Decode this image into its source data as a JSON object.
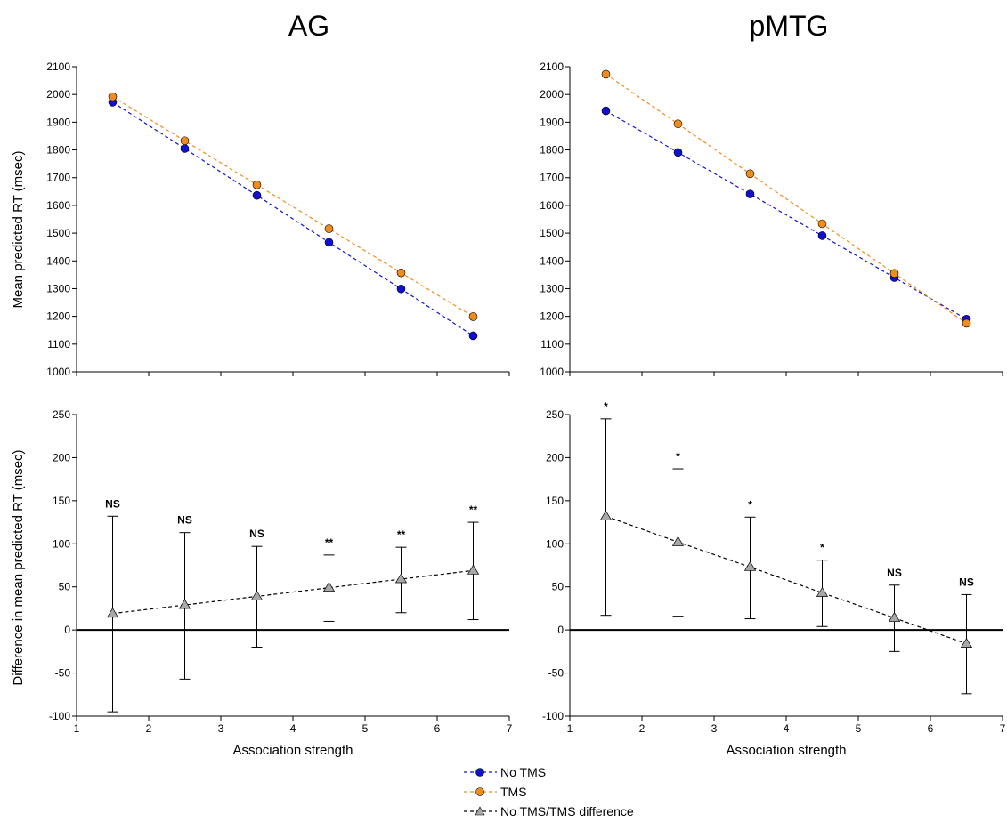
{
  "colors": {
    "no_tms": "#1010d0",
    "tms": "#f08c1c",
    "difference": "#a8a8a8",
    "axis": "#000000"
  },
  "legend": {
    "entries": [
      {
        "key": "no_tms",
        "label": "No TMS",
        "marker": "circle"
      },
      {
        "key": "tms",
        "label": "TMS",
        "marker": "circle"
      },
      {
        "key": "difference",
        "label": "No TMS/TMS difference",
        "marker": "triangle"
      }
    ]
  },
  "shared_axes": {
    "xlabel": "Association strength",
    "top_ylabel": "Mean predicted RT (msec)",
    "bottom_ylabel": "Difference in mean predicted RT (msec)"
  },
  "chart_data": [
    {
      "panel": "AG-top",
      "type": "line",
      "title": "AG",
      "xlabel": "",
      "ylabel": "Mean predicted RT (msec)",
      "xlim": [
        1,
        7
      ],
      "ylim": [
        1000,
        2100
      ],
      "x": [
        1.5,
        2.5,
        3.5,
        4.5,
        5.5,
        6.5
      ],
      "yticks": [
        1000,
        1100,
        1200,
        1300,
        1400,
        1500,
        1600,
        1700,
        1800,
        1900,
        2000,
        2100
      ],
      "series": [
        {
          "name": "No TMS",
          "color_key": "no_tms",
          "values": [
            1972,
            1805,
            1636,
            1467,
            1299,
            1130
          ]
        },
        {
          "name": "TMS",
          "color_key": "tms",
          "values": [
            1992,
            1833,
            1674,
            1516,
            1357,
            1199
          ]
        }
      ]
    },
    {
      "panel": "pMTG-top",
      "type": "line",
      "title": "pMTG",
      "xlabel": "",
      "ylabel": "",
      "xlim": [
        1,
        7
      ],
      "ylim": [
        1000,
        2100
      ],
      "x": [
        1.5,
        2.5,
        3.5,
        4.5,
        5.5,
        6.5
      ],
      "yticks": [
        1000,
        1100,
        1200,
        1300,
        1400,
        1500,
        1600,
        1700,
        1800,
        1900,
        2000,
        2100
      ],
      "series": [
        {
          "name": "No TMS",
          "color_key": "no_tms",
          "values": [
            1941,
            1791,
            1641,
            1491,
            1340,
            1190
          ]
        },
        {
          "name": "TMS",
          "color_key": "tms",
          "values": [
            2073,
            1894,
            1714,
            1534,
            1355,
            1175
          ]
        }
      ]
    },
    {
      "panel": "AG-bottom",
      "type": "line",
      "title": "",
      "xlabel": "Association strength",
      "ylabel": "Difference in mean predicted RT (msec)",
      "xlim": [
        1,
        7
      ],
      "ylim": [
        -100,
        250
      ],
      "x": [
        1.5,
        2.5,
        3.5,
        4.5,
        5.5,
        6.5
      ],
      "xticks": [
        1,
        2,
        3,
        4,
        5,
        6,
        7
      ],
      "yticks": [
        -100,
        -50,
        0,
        50,
        100,
        150,
        200,
        250
      ],
      "series": [
        {
          "name": "No TMS/TMS difference",
          "color_key": "difference",
          "values": [
            19,
            29,
            39,
            49,
            59,
            69
          ],
          "err_low": [
            -95,
            -57,
            -20,
            10,
            20,
            12
          ],
          "err_high": [
            132,
            113,
            97,
            87,
            96,
            125
          ]
        }
      ],
      "annotations": [
        "NS",
        "NS",
        "NS",
        "**",
        "**",
        "**"
      ]
    },
    {
      "panel": "pMTG-bottom",
      "type": "line",
      "title": "",
      "xlabel": "Association strength",
      "ylabel": "",
      "xlim": [
        1,
        7
      ],
      "ylim": [
        -100,
        250
      ],
      "x": [
        1.5,
        2.5,
        3.5,
        4.5,
        5.5,
        6.5
      ],
      "xticks": [
        1,
        2,
        3,
        4,
        5,
        6,
        7
      ],
      "yticks": [
        -100,
        -50,
        0,
        50,
        100,
        150,
        200,
        250
      ],
      "series": [
        {
          "name": "No TMS/TMS difference",
          "color_key": "difference",
          "values": [
            132,
            102,
            73,
            43,
            14,
            -16
          ],
          "err_low": [
            17,
            16,
            13,
            4,
            -25,
            -74
          ],
          "err_high": [
            245,
            187,
            131,
            81,
            52,
            41
          ]
        }
      ],
      "annotations": [
        "*",
        "*",
        "*",
        "*",
        "NS",
        "NS"
      ]
    }
  ]
}
